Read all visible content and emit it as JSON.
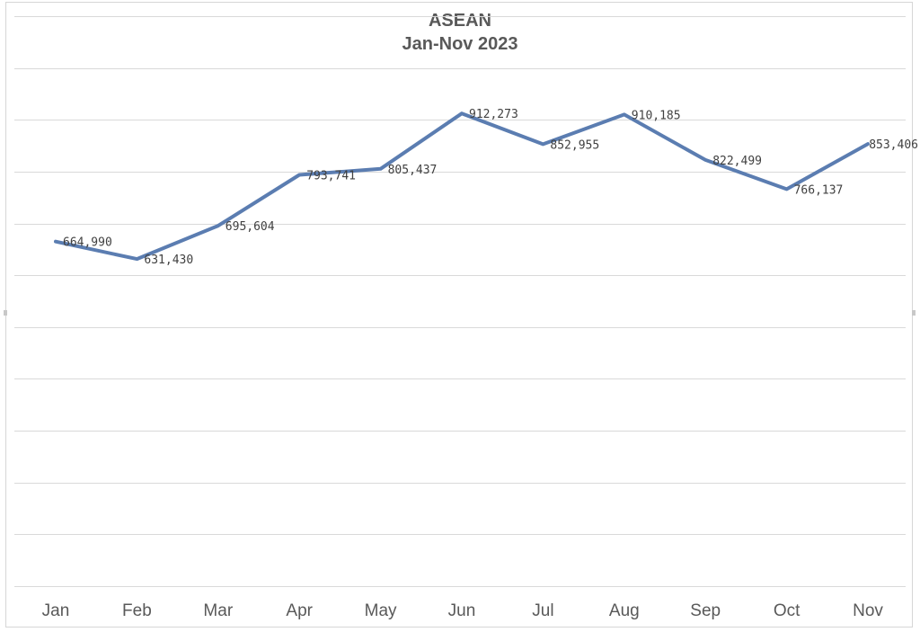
{
  "chart_data": {
    "type": "line",
    "title": "ASEAN",
    "subtitle": "Jan-Nov 2023",
    "categories": [
      "Jan",
      "Feb",
      "Mar",
      "Apr",
      "May",
      "Jun",
      "Jul",
      "Aug",
      "Sep",
      "Oct",
      "Nov"
    ],
    "series": [
      {
        "values": [
          664990,
          631430,
          695604,
          793741,
          805437,
          912273,
          852955,
          910185,
          822499,
          766137,
          853406
        ],
        "labels": [
          "664,990",
          "631,430",
          "695,604",
          "793,741",
          "805,437",
          "912,273",
          "852,955",
          "910,185",
          "822,499",
          "766,137",
          "853,406"
        ],
        "color": "#5b7db1"
      }
    ],
    "ylim": [
      0,
      1100000
    ],
    "y_gridline_step": 100000,
    "y_tick_labels_shown": false,
    "grid": true,
    "legend": "none"
  }
}
